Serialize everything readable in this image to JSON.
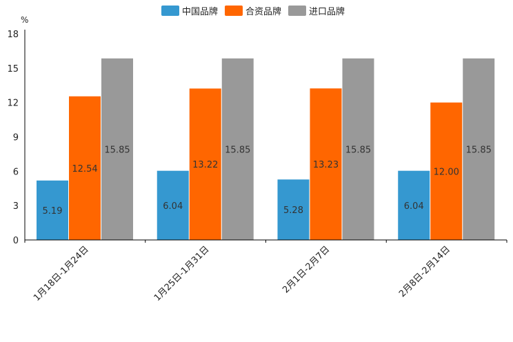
{
  "chart_data": {
    "type": "bar",
    "unit": "%",
    "categories": [
      "1月18日-1月24日",
      "1月25日-1月31日",
      "2月1日-2月7日",
      "2月8日-2月14日"
    ],
    "series": [
      {
        "name": "中国品牌",
        "color": "#3598d0",
        "values": [
          5.19,
          6.04,
          5.28,
          6.04
        ],
        "labels": [
          "5.19",
          "6.04",
          "5.28",
          "6.04"
        ]
      },
      {
        "name": "合资品牌",
        "color": "#ff6600",
        "values": [
          12.54,
          13.22,
          13.23,
          12.0
        ],
        "labels": [
          "12.54",
          "13.22",
          "13.23",
          "12.00"
        ]
      },
      {
        "name": "进口品牌",
        "color": "#999999",
        "values": [
          15.85,
          15.85,
          15.85,
          15.85
        ],
        "labels": [
          "15.85",
          "15.85",
          "15.85",
          "15.85"
        ]
      }
    ],
    "ylim": [
      0,
      18
    ],
    "yticks": [
      "0",
      "3",
      "6",
      "9",
      "12",
      "15",
      "18"
    ],
    "legend_position": "top-center",
    "grid": false
  }
}
